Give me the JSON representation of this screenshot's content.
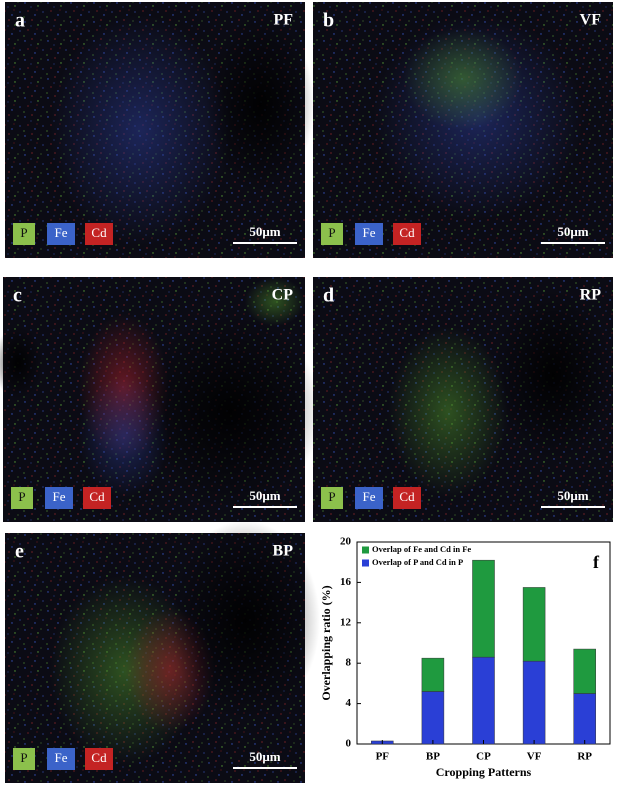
{
  "panels": [
    {
      "letter": "a",
      "sample": "PF",
      "legend": [
        "P",
        "Fe",
        "Cd"
      ],
      "scale_bar": "50μm"
    },
    {
      "letter": "b",
      "sample": "VF",
      "legend": [
        "P",
        "Fe",
        "Cd"
      ],
      "scale_bar": "50μm"
    },
    {
      "letter": "c",
      "sample": "CP",
      "legend": [
        "P",
        "Fe",
        "Cd"
      ],
      "scale_bar": "50μm"
    },
    {
      "letter": "d",
      "sample": "RP",
      "legend": [
        "P",
        "Fe",
        "Cd"
      ],
      "scale_bar": "50μm"
    },
    {
      "letter": "e",
      "sample": "BP",
      "legend": [
        "P",
        "Fe",
        "Cd"
      ],
      "scale_bar": "50μm"
    }
  ],
  "chart_data": {
    "type": "bar",
    "stacked": true,
    "letter": "f",
    "x_label": "Cropping Patterns",
    "y_label": "Overlapping ratio (%)",
    "categories": [
      "PF",
      "BP",
      "CP",
      "VF",
      "RP"
    ],
    "series": [
      {
        "name": "Overlap of P and Cd in P",
        "color": "#2a3fd6",
        "values": [
          0.3,
          5.2,
          8.6,
          8.2,
          5.0
        ]
      },
      {
        "name": "Overlap of Fe and Cd in Fe",
        "color": "#1f9a3f",
        "values": [
          0,
          3.3,
          9.6,
          7.3,
          4.4
        ]
      }
    ],
    "ylim": [
      0,
      20
    ],
    "yticks": [
      0,
      4,
      8,
      12,
      16,
      20
    ]
  }
}
